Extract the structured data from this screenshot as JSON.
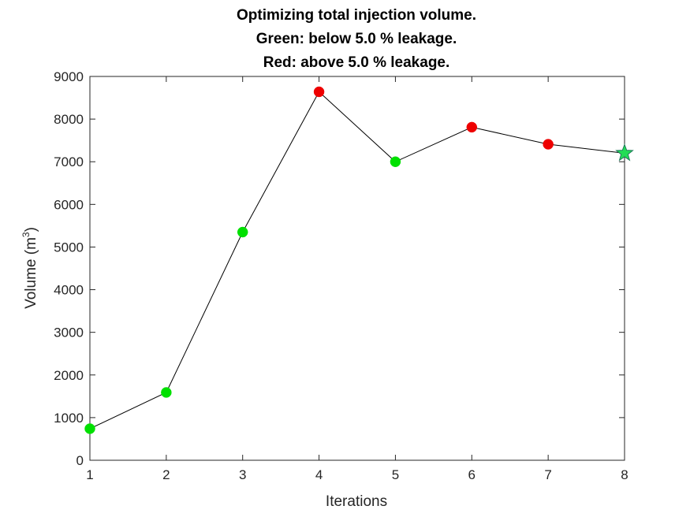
{
  "chart_data": {
    "type": "line",
    "title_lines": [
      "Optimizing total injection volume.",
      "Green: below 5.0 % leakage.",
      "Red: above 5.0 % leakage."
    ],
    "xlabel": "Iterations",
    "ylabel_base": "Volume (m",
    "ylabel_sup": "3",
    "ylabel_close": ")",
    "xlim": [
      1,
      8
    ],
    "ylim": [
      0,
      9000
    ],
    "xticks": [
      1,
      2,
      3,
      4,
      5,
      6,
      7,
      8
    ],
    "yticks": [
      0,
      1000,
      2000,
      3000,
      4000,
      5000,
      6000,
      7000,
      8000,
      9000
    ],
    "grid": false,
    "series": [
      {
        "x": [
          1,
          2,
          3,
          4,
          5,
          6,
          7,
          8
        ],
        "y": [
          740,
          1590,
          5350,
          8640,
          7000,
          7810,
          7410,
          7200
        ],
        "status": [
          "below",
          "below",
          "below",
          "above",
          "below",
          "above",
          "above",
          "final"
        ]
      }
    ],
    "colors": {
      "line": "#000000",
      "below": "#00e000",
      "above": "#ee0000",
      "final": "#22dd55",
      "final_stroke": "#1f7a5a"
    },
    "final_marker": "star"
  }
}
